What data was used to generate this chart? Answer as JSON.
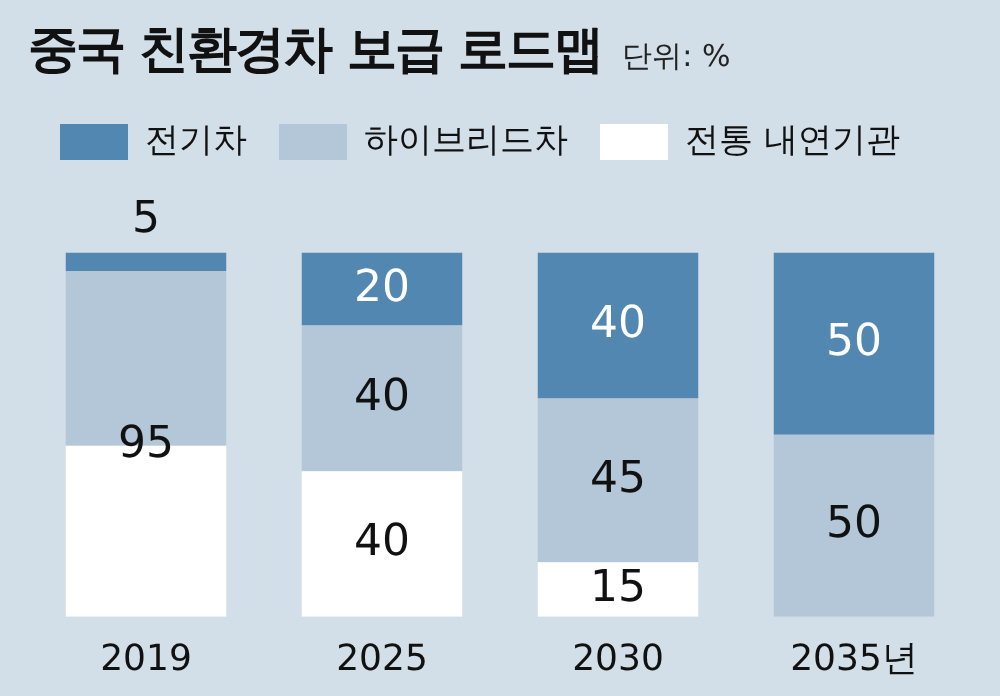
{
  "chart_data": {
    "type": "bar",
    "title": "중국 친환경차 보급 로드맵",
    "subtitle": "단위: %",
    "stacked": true,
    "legend": "top left",
    "categories": [
      "2019",
      "2025",
      "2030",
      "2035년"
    ],
    "series": [
      {
        "name": "전통 내연기관",
        "color": "#ffffff",
        "values": [
          47,
          40,
          15,
          null
        ],
        "value_labels": [
          null,
          "40",
          "15",
          null
        ]
      },
      {
        "name": "하이브리드차",
        "color": "#b3c7d9",
        "values": [
          48,
          40,
          45,
          50
        ],
        "value_labels": [
          null,
          "40",
          "45",
          "50"
        ]
      },
      {
        "name": "전기차",
        "color": "#5287b2",
        "values": [
          5,
          20,
          40,
          50
        ],
        "value_labels": [
          "5",
          "20",
          "40",
          "50"
        ]
      }
    ],
    "annotations": [
      "95"
    ]
  }
}
